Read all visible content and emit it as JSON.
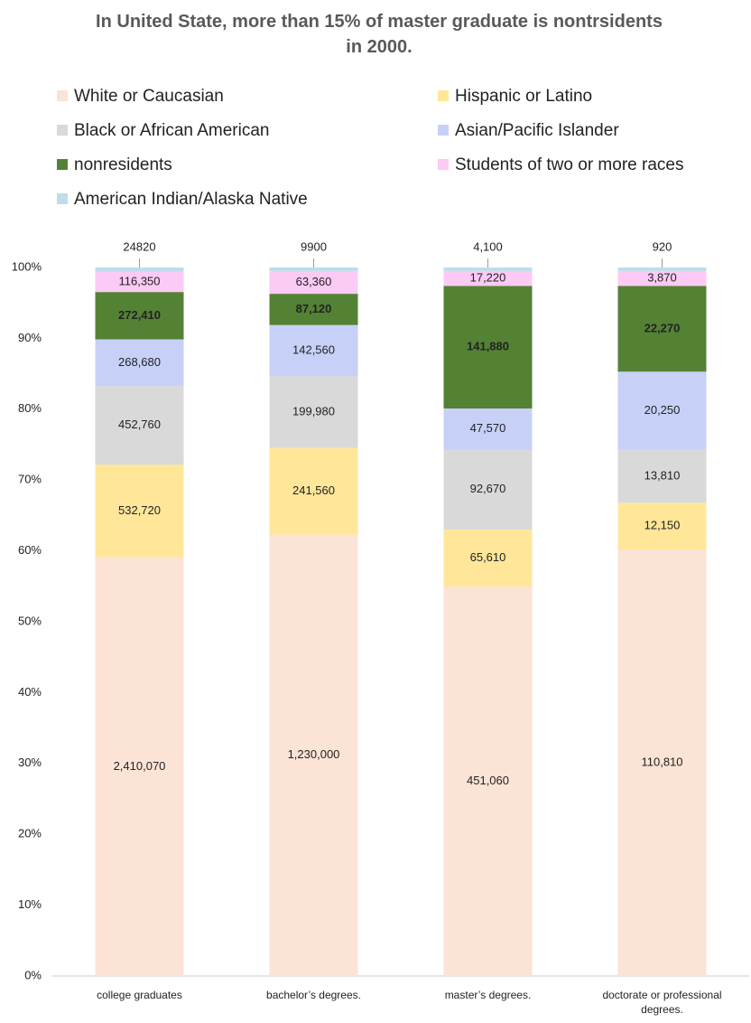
{
  "chart_data": {
    "type": "stacked_percent_bar",
    "title": "In United State, more than 15% of master graduate is nontrsidents in 2000.",
    "categories": [
      "college graduates",
      "bachelor’s degrees.",
      "master’s degrees.",
      "doctorate or professional degrees."
    ],
    "series": [
      {
        "name": "White or Caucasian",
        "color": "#fbe3d6",
        "values": [
          2410070,
          1230000,
          451060,
          110810
        ],
        "value_labels": [
          "2,410,070",
          "1,230,000",
          "451,060",
          "110,810"
        ]
      },
      {
        "name": "Hispanic or Latino",
        "color": "#ffe699",
        "values": [
          532720,
          241560,
          65610,
          12150
        ],
        "value_labels": [
          "532,720",
          "241,560",
          "65,610",
          "12,150"
        ]
      },
      {
        "name": "Black or African American",
        "color": "#d9d9d9",
        "values": [
          452760,
          199980,
          92670,
          13810
        ],
        "value_labels": [
          "452,760",
          "199,980",
          "92,670",
          "13,810"
        ]
      },
      {
        "name": "Asian/Pacific Islander",
        "color": "#c7d1f8",
        "values": [
          268680,
          142560,
          47570,
          20250
        ],
        "value_labels": [
          "268,680",
          "142,560",
          "47,570",
          "20,250"
        ]
      },
      {
        "name": "nonresidents",
        "color": "#548235",
        "values": [
          272410,
          87120,
          141880,
          22270
        ],
        "value_labels": [
          "272,410",
          "87,120",
          "141,880",
          "22,270"
        ]
      },
      {
        "name": "Students of two or more races",
        "color": "#fbcaf5",
        "values": [
          116350,
          63360,
          17220,
          3870
        ],
        "value_labels": [
          "116,350",
          "63,360",
          "17,220",
          "3,870"
        ]
      },
      {
        "name": "American Indian/Alaska Native",
        "color": "#bfdcea",
        "values": [
          24820,
          9900,
          4100,
          920
        ],
        "value_labels": [
          "24820",
          "9900",
          "4,100",
          "920"
        ]
      }
    ],
    "ylim": [
      0,
      100
    ],
    "yticks": [
      {
        "value": 0,
        "label": "0%"
      },
      {
        "value": 10,
        "label": "10%"
      },
      {
        "value": 20,
        "label": "20%"
      },
      {
        "value": 30,
        "label": "30%"
      },
      {
        "value": 40,
        "label": "40%"
      },
      {
        "value": 50,
        "label": "50%"
      },
      {
        "value": 60,
        "label": "60%"
      },
      {
        "value": 70,
        "label": "70%"
      },
      {
        "value": 80,
        "label": "80%"
      },
      {
        "value": 90,
        "label": "90%"
      },
      {
        "value": 100,
        "label": "100%"
      }
    ],
    "grid": false
  }
}
